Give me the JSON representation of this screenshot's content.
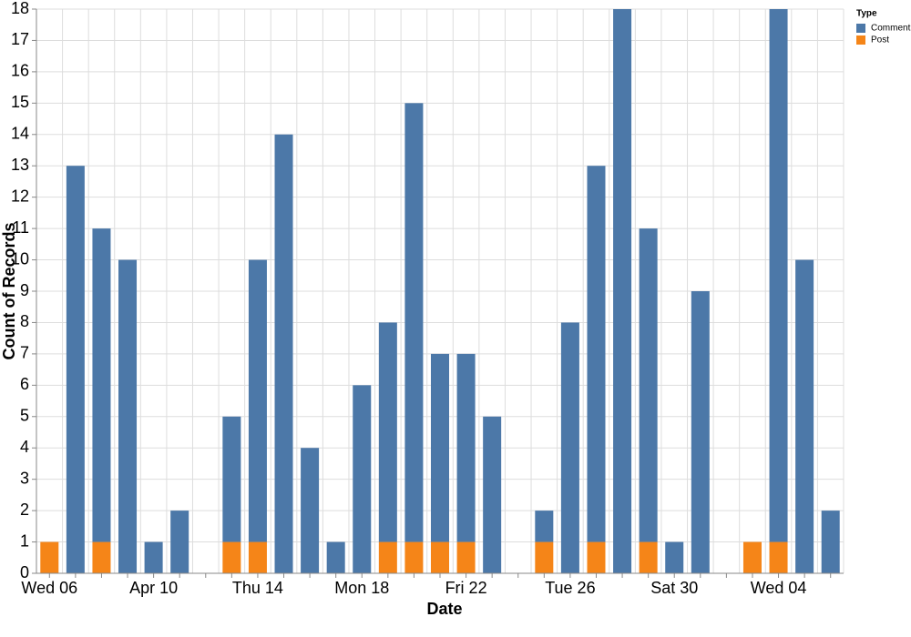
{
  "chart_data": {
    "type": "bar",
    "stacked": true,
    "x_label": "Date",
    "y_label": "Count of Records",
    "legend_title": "Type",
    "categories": [
      "Wed 06",
      null,
      null,
      null,
      "Apr 10",
      null,
      null,
      null,
      "Thu 14",
      null,
      null,
      null,
      "Mon 18",
      null,
      null,
      null,
      "Fri 22",
      null,
      null,
      null,
      "Tue 26",
      null,
      null,
      null,
      "Sat 30",
      null,
      null,
      null,
      "Wed 04",
      null,
      null
    ],
    "series": [
      {
        "name": "Post",
        "color": "#f58518",
        "values": [
          1,
          0,
          1,
          0,
          0,
          0,
          0,
          1,
          1,
          0,
          0,
          0,
          0,
          1,
          1,
          1,
          1,
          0,
          0,
          1,
          0,
          1,
          0,
          1,
          0,
          0,
          0,
          1,
          1,
          0,
          0
        ]
      },
      {
        "name": "Comment",
        "color": "#4c78a8",
        "values": [
          0,
          13,
          10,
          10,
          1,
          2,
          0,
          4,
          9,
          14,
          4,
          1,
          6,
          7,
          14,
          6,
          6,
          5,
          0,
          1,
          8,
          12,
          18,
          10,
          1,
          9,
          0,
          0,
          17,
          10,
          2
        ]
      }
    ],
    "ylim": [
      0,
      18
    ],
    "yticks": [
      0,
      1,
      2,
      3,
      4,
      5,
      6,
      7,
      8,
      9,
      10,
      11,
      12,
      13,
      14,
      15,
      16,
      17,
      18
    ],
    "grid": true
  }
}
